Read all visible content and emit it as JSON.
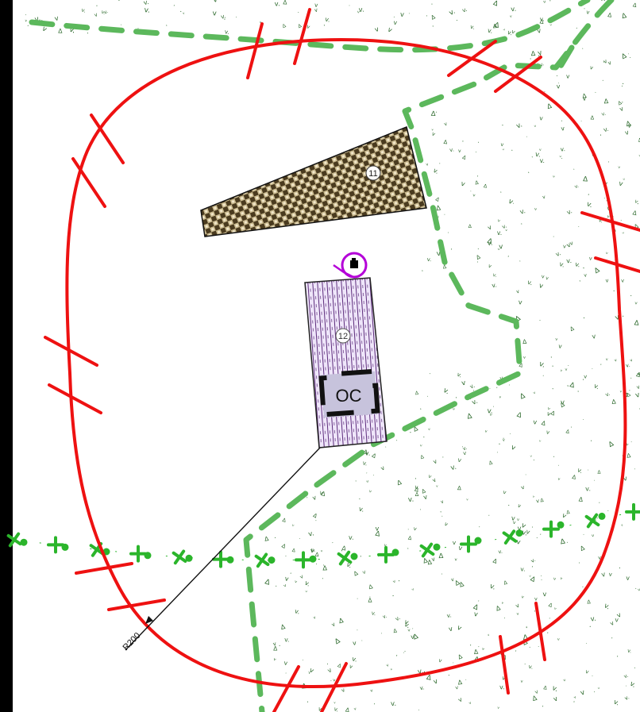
{
  "map": {
    "buildings": [
      {
        "id": "building-11",
        "number": "11",
        "pattern": "brown-checker"
      },
      {
        "id": "building-12",
        "number": "12",
        "pattern": "purple-stripe"
      }
    ],
    "feature_label": "OC",
    "radius_label": "R200",
    "colors": {
      "boundary": "#ee1111",
      "zone_dashed": "#5cb85c",
      "cross_line": "#2bb52b",
      "vegetation": "#2d6a2d",
      "marker": "#b400d8",
      "building_11_fill": "#8b7a55",
      "building_12_fill": "#efe6fa",
      "oc_fill": "#c7c3dc"
    }
  }
}
